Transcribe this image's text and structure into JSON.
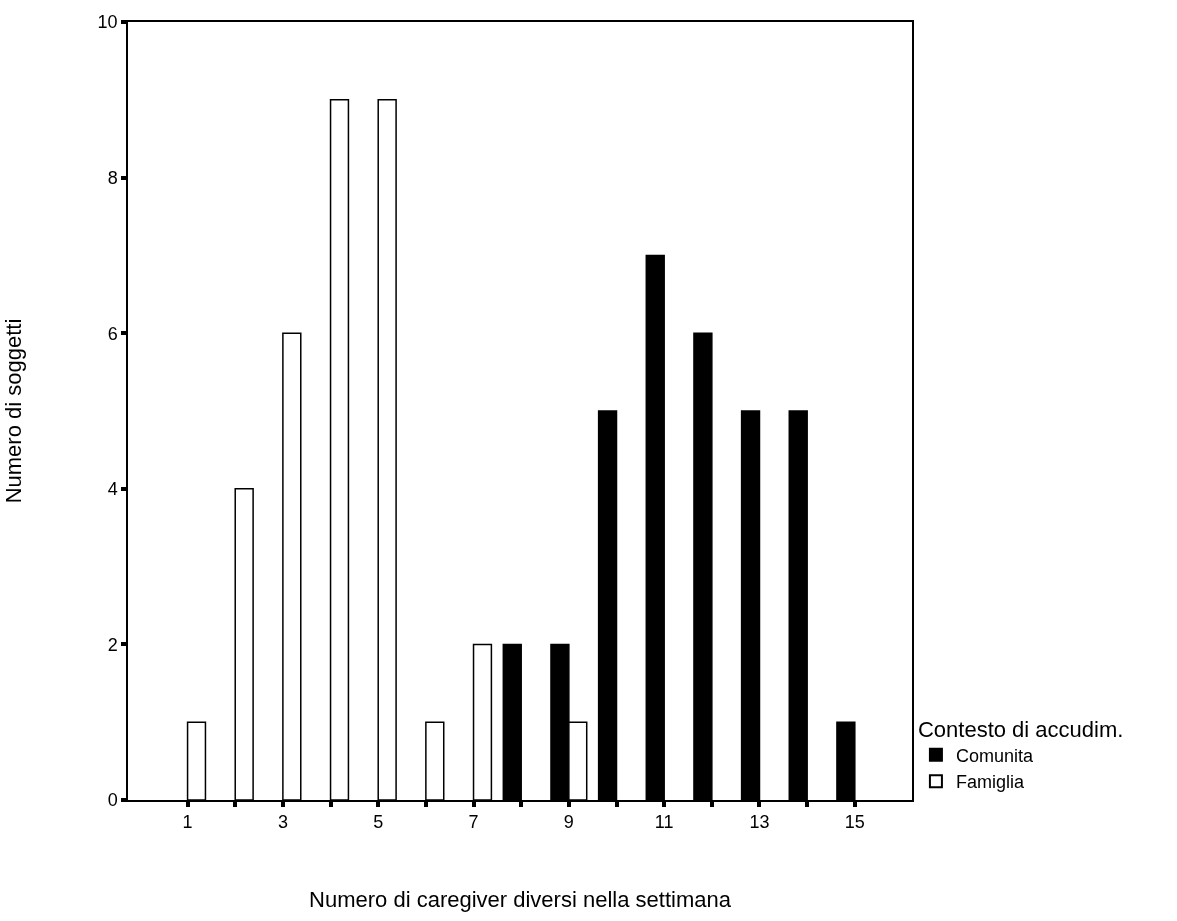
{
  "chart_data": {
    "type": "bar",
    "xlabel": "Numero di caregiver diversi nella settimana",
    "ylabel": "Numero di soggetti",
    "legend_title": "Contesto di accudim.",
    "x": [
      1,
      2,
      3,
      4,
      5,
      6,
      7,
      8,
      9,
      10,
      11,
      12,
      13,
      14,
      15
    ],
    "xlim": [
      -0.25,
      16.2
    ],
    "xticks": [
      1,
      {
        "value": 2,
        "label": null
      },
      3,
      {
        "value": 4,
        "label": null
      },
      5,
      {
        "value": 6,
        "label": null
      },
      7,
      {
        "value": 8,
        "label": null
      },
      9,
      {
        "value": 10,
        "label": null
      },
      11,
      {
        "value": 12,
        "label": null
      },
      13,
      {
        "value": 14,
        "label": null
      },
      15
    ],
    "series": [
      {
        "name": "Comunita",
        "color": "#000000",
        "values": [
          null,
          null,
          null,
          null,
          null,
          null,
          null,
          2,
          2,
          5,
          7,
          6,
          5,
          5,
          1
        ]
      },
      {
        "name": "Famiglia",
        "color": "#ffffff",
        "values": [
          1,
          4,
          6,
          9,
          9,
          1,
          2,
          null,
          1,
          null,
          null,
          null,
          null,
          null,
          null
        ]
      }
    ],
    "ylim": [
      0,
      10
    ],
    "yticks": [
      0,
      2,
      4,
      6,
      8,
      10
    ],
    "legend": "right"
  }
}
